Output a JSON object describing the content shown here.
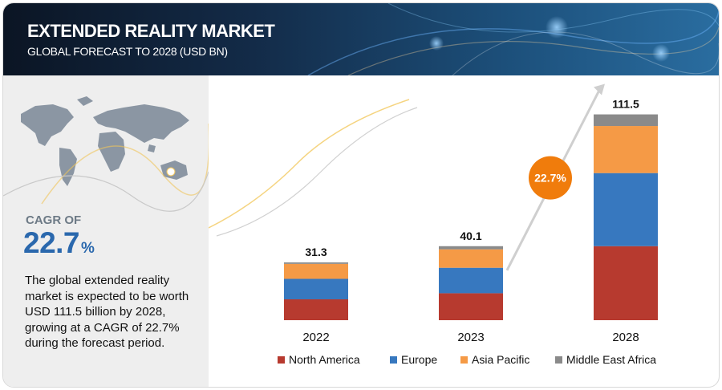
{
  "header": {
    "title": "EXTENDED REALITY MARKET",
    "subtitle": "GLOBAL FORECAST TO 2028 (USD BN)"
  },
  "summary": {
    "cagr_label": "CAGR OF",
    "cagr_number": "22.7",
    "cagr_unit": "%",
    "description": "The global extended reality market is expected to be worth USD 111.5 billion by 2028, growing at a CAGR of 22.7% during the forecast period."
  },
  "chart_data": {
    "type": "bar",
    "stacked": true,
    "categories": [
      "2022",
      "2023",
      "2028"
    ],
    "totals": [
      "31.3",
      "40.1",
      "111.5"
    ],
    "series": [
      {
        "name": "North America",
        "values": [
          11.3,
          14.6,
          40.1
        ],
        "color": "#b73a2f"
      },
      {
        "name": "Europe",
        "values": [
          11.1,
          13.8,
          39.6
        ],
        "color": "#3778bf"
      },
      {
        "name": "Asia Pacific",
        "values": [
          8.1,
          10.0,
          25.5
        ],
        "color": "#f59a46"
      },
      {
        "name": "Middle East Africa",
        "values": [
          0.8,
          1.7,
          6.3
        ],
        "color": "#8a8a8a"
      }
    ],
    "annotation": {
      "text": "22.7%",
      "color": "#f07c0c"
    },
    "legend_position": "bottom",
    "grid": false
  }
}
